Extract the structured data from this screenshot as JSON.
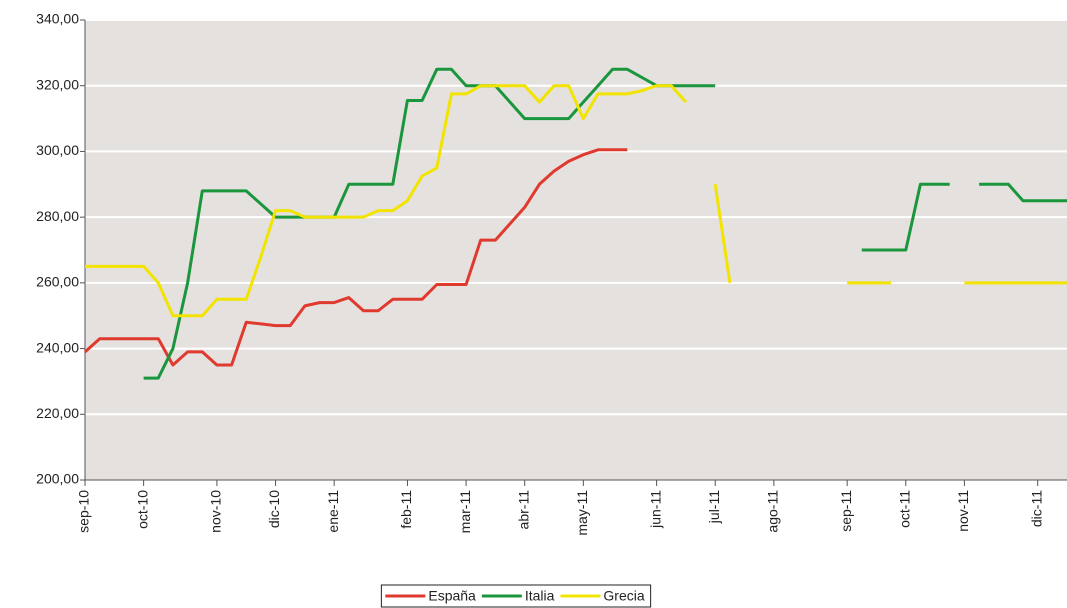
{
  "chart_data": {
    "type": "line",
    "categories": [
      "sep-10",
      null,
      null,
      null,
      "oct-10",
      null,
      null,
      null,
      null,
      "nov-10",
      null,
      null,
      null,
      "dic-10",
      null,
      null,
      null,
      "ene-11",
      null,
      null,
      null,
      null,
      "feb-11",
      null,
      null,
      null,
      "mar-11",
      null,
      null,
      null,
      "abr-11",
      null,
      null,
      null,
      "may-11",
      null,
      null,
      null,
      null,
      "jun-11",
      null,
      null,
      null,
      "jul-11",
      null,
      null,
      null,
      "ago-11",
      null,
      null,
      null,
      null,
      "sep-11",
      null,
      null,
      null,
      "oct-11",
      null,
      null,
      null,
      "nov-11",
      null,
      null,
      null,
      null,
      "dic-11",
      null,
      null
    ],
    "series": [
      {
        "name": "España",
        "color": "#e03a2f",
        "values": [
          239,
          243,
          243,
          243,
          243,
          243,
          235,
          239,
          239,
          235,
          235,
          248,
          247.5,
          247,
          247,
          253,
          254,
          254,
          255.5,
          251.5,
          251.5,
          255,
          255,
          255,
          259.5,
          259.5,
          259.5,
          273,
          273,
          278,
          283,
          290,
          294,
          297,
          299,
          300.5,
          300.5,
          300.5,
          null,
          null,
          null,
          null,
          null,
          null,
          null,
          null,
          null,
          null,
          null,
          null,
          null,
          null,
          null,
          null,
          null,
          null,
          null,
          null,
          null,
          null,
          null,
          null,
          null,
          null,
          null,
          null,
          null,
          null
        ]
      },
      {
        "name": "Italia",
        "color": "#1a963c",
        "values": [
          null,
          null,
          null,
          null,
          231,
          231,
          240,
          260,
          288,
          288,
          288,
          288,
          284,
          280,
          280,
          280,
          280,
          280,
          290,
          290,
          290,
          290,
          315.5,
          315.5,
          325,
          325,
          320,
          320,
          320,
          315,
          310,
          310,
          310,
          310,
          315,
          320,
          325,
          325,
          322.5,
          320,
          320,
          320,
          320,
          320,
          null,
          null,
          null,
          null,
          null,
          null,
          null,
          null,
          null,
          270,
          270,
          270,
          270,
          290,
          290,
          290,
          null,
          290,
          290,
          290,
          285,
          285,
          285,
          285
        ]
      },
      {
        "name": "Grecia",
        "color": "#f2e400",
        "values": [
          265,
          265,
          265,
          265,
          265,
          260,
          250,
          250,
          250,
          255,
          255,
          255,
          268,
          282,
          282,
          280,
          280,
          280,
          280,
          280,
          282,
          282,
          285,
          292.5,
          295,
          317.5,
          317.5,
          320,
          320,
          320,
          320,
          315,
          320,
          320,
          310,
          317.5,
          317.5,
          317.5,
          318.5,
          320,
          320,
          315,
          null,
          290,
          260,
          null,
          null,
          null,
          null,
          null,
          null,
          null,
          260,
          260,
          260,
          260,
          null,
          null,
          null,
          null,
          260,
          260,
          260,
          260,
          260,
          260,
          260,
          260
        ]
      }
    ],
    "ylim": [
      200,
      340
    ],
    "yticks": [
      {
        "value": 200,
        "label": "200,00"
      },
      {
        "value": 220,
        "label": "220,00"
      },
      {
        "value": 240,
        "label": "240,00"
      },
      {
        "value": 260,
        "label": "260,00"
      },
      {
        "value": 280,
        "label": "280,00"
      },
      {
        "value": 300,
        "label": "300,00"
      },
      {
        "value": 320,
        "label": "320,00"
      },
      {
        "value": 340,
        "label": "340,00"
      }
    ],
    "grid": true,
    "legend": "bottom"
  }
}
